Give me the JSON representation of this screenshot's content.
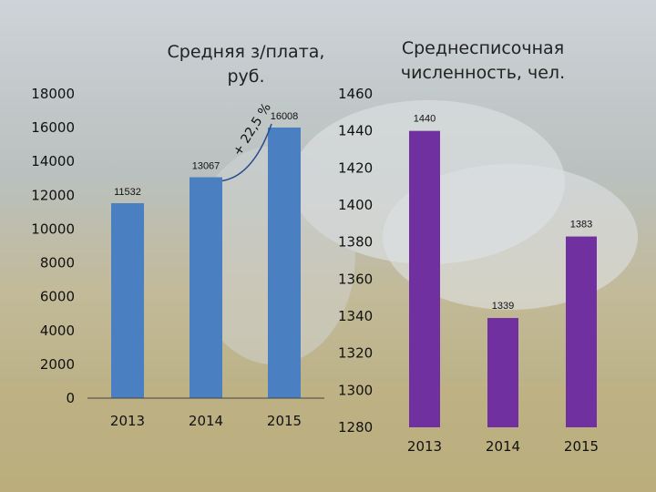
{
  "chart_data": [
    {
      "type": "bar",
      "title": "Средняя з/плата, руб.",
      "categories": [
        "2013",
        "2014",
        "2015"
      ],
      "values": [
        11532,
        13067,
        16008
      ],
      "data_labels": [
        "11532",
        "13067",
        "16008"
      ],
      "ylim": [
        0,
        18000
      ],
      "yticks": [
        "0",
        "2000",
        "4000",
        "6000",
        "8000",
        "10000",
        "12000",
        "14000",
        "16000",
        "18000"
      ],
      "annotation": "+ 22,5 %",
      "color": "#4a7fc1",
      "grid": false,
      "legend": "none"
    },
    {
      "type": "bar",
      "title": "Среднесписочная численность, чел.",
      "categories": [
        "2013",
        "2014",
        "2015"
      ],
      "values": [
        1440,
        1339,
        1383
      ],
      "data_labels": [
        "1440",
        "1339",
        "1383"
      ],
      "ylim": [
        1280,
        1460
      ],
      "yticks": [
        "1280",
        "1300",
        "1320",
        "1340",
        "1360",
        "1380",
        "1400",
        "1420",
        "1440",
        "1460"
      ],
      "color": "#7030a0",
      "grid": false,
      "legend": "none"
    }
  ],
  "titles": {
    "salary_line1": "Средняя з/плата,",
    "salary_line2": "руб.",
    "staff_line1": "Среднесписочная",
    "staff_line2": "численность, чел."
  },
  "background": {
    "description_colors": [
      "#b5c0c8",
      "#c9b98a",
      "#8a9a5a"
    ]
  }
}
